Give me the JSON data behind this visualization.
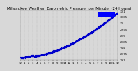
{
  "title": "Milwaukee Weather  Barometric Pressure  per Minute  (24 Hours)",
  "bg_color": "#d8d8d8",
  "plot_bg_color": "#d8d8d8",
  "outer_bg": "#c8c8c8",
  "dot_color": "#0000cc",
  "dot_size": 0.8,
  "grid_color": "#aaaaaa",
  "ylim": [
    29.7,
    30.1
  ],
  "xlim": [
    0,
    1440
  ],
  "yticks": [
    29.7,
    29.75,
    29.8,
    29.85,
    29.9,
    29.95,
    30.0,
    30.05,
    30.1
  ],
  "ytick_labels": [
    "29.7",
    "29.75",
    "29.8",
    "29.85",
    "29.9",
    "29.95",
    "30",
    "30.05",
    "30.1"
  ],
  "xtick_positions": [
    0,
    60,
    120,
    180,
    240,
    300,
    360,
    420,
    480,
    540,
    600,
    660,
    720,
    780,
    840,
    900,
    960,
    1020,
    1080,
    1140,
    1200,
    1260,
    1320,
    1380,
    1440
  ],
  "xtick_labels": [
    "12",
    "1",
    "2",
    "3",
    "4",
    "5",
    "6",
    "7",
    "8",
    "9",
    "10",
    "11",
    "12",
    "1",
    "2",
    "3",
    "4",
    "5",
    "6",
    "7",
    "8",
    "9",
    "10",
    "11",
    "12"
  ],
  "num_points": 1440,
  "rect_color": "#0000ff",
  "title_fontsize": 4.0,
  "tick_fontsize": 2.8,
  "vgrid_positions": [
    0,
    60,
    120,
    180,
    240,
    300,
    360,
    420,
    480,
    540,
    600,
    660,
    720,
    780,
    840,
    900,
    960,
    1020,
    1080,
    1140,
    1200,
    1260,
    1320,
    1380,
    1440
  ],
  "start_pressure": 29.715,
  "end_pressure": 30.085
}
